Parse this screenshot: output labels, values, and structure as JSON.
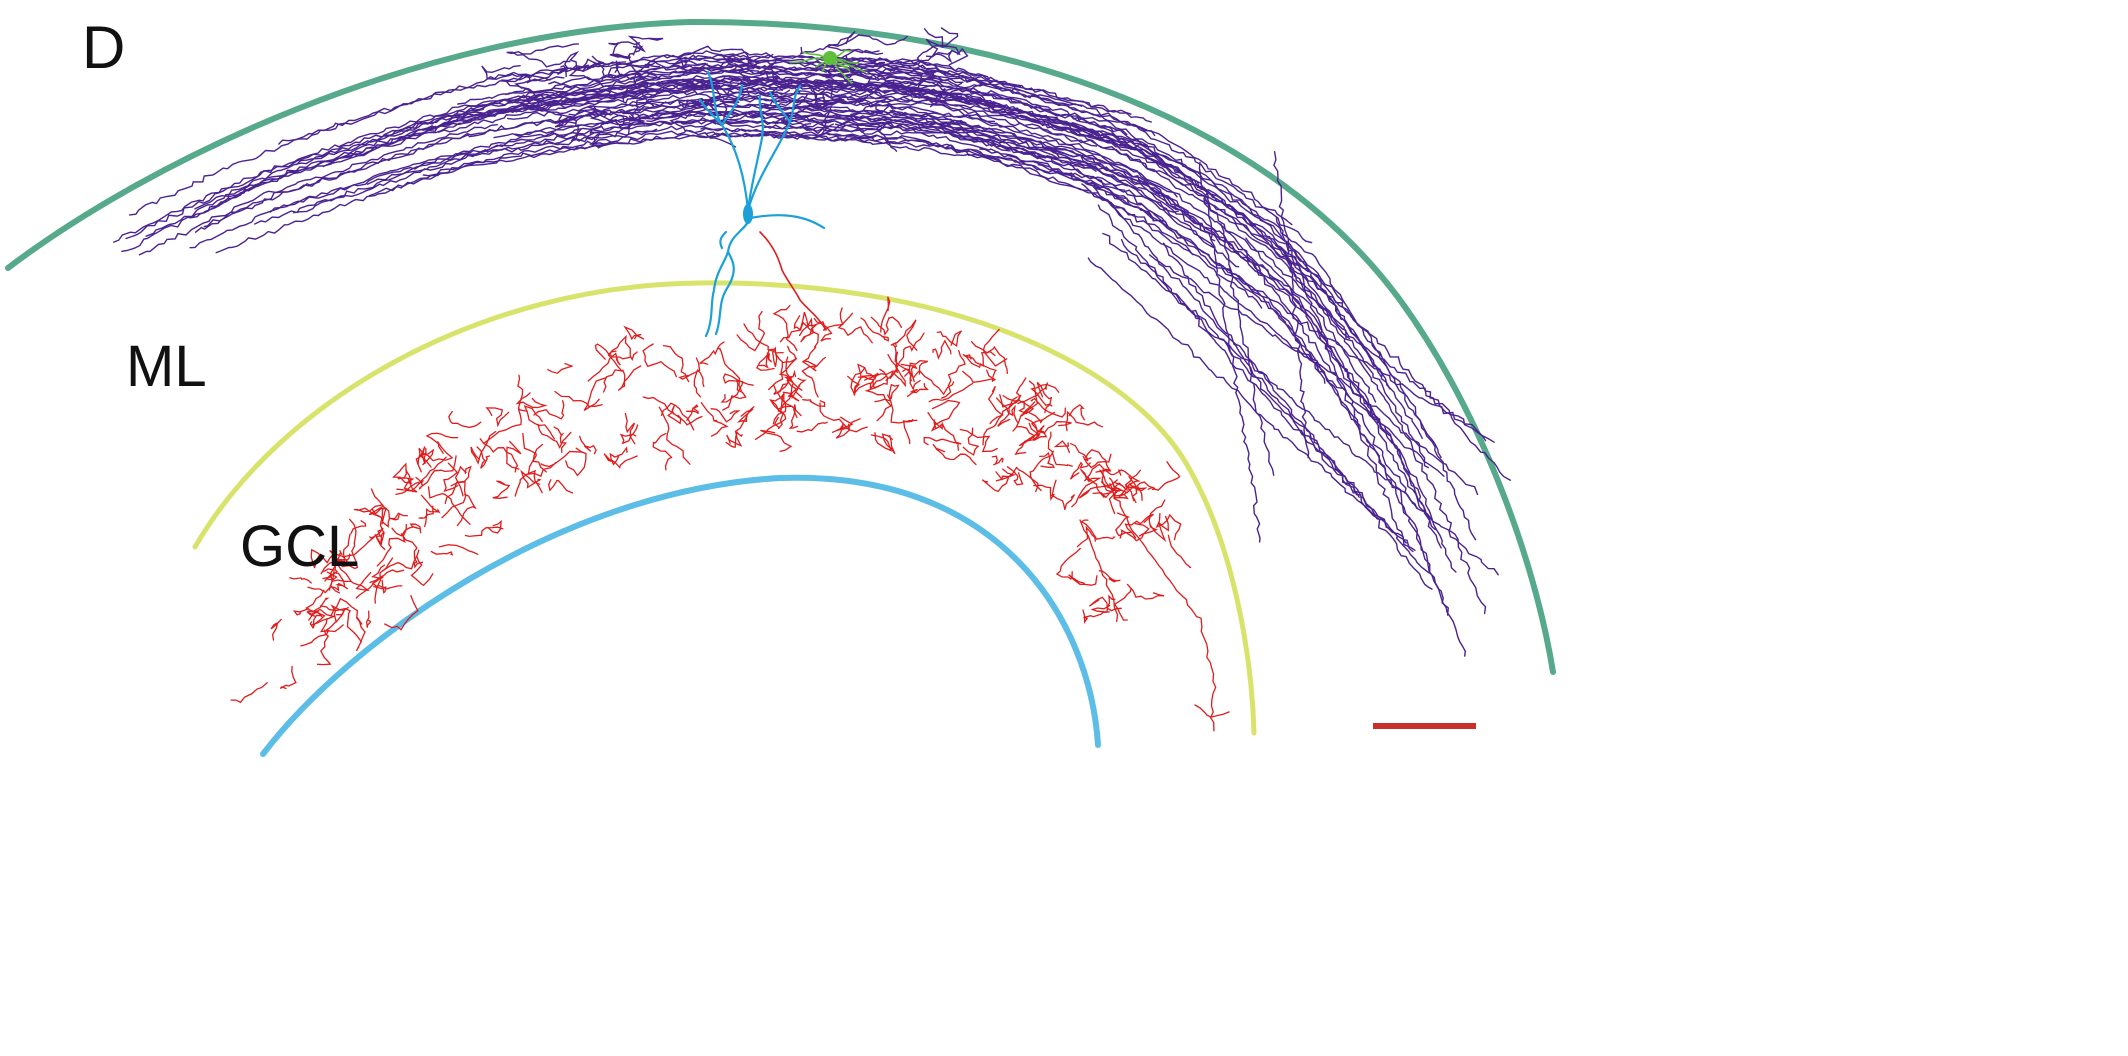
{
  "panel": {
    "letter": "D"
  },
  "labels": {
    "ml": "ML",
    "gcl": "GCL"
  },
  "colors": {
    "outer_boundary": "#56a98a",
    "ml_gcl_boundary": "#d8e36c",
    "inner_boundary": "#5cbde6",
    "purple_axons": "#4a2390",
    "granule_cell": "#1ba0d8",
    "red_axon": "#e01c1c",
    "green_cell": "#5fbf3a",
    "scale_bar": "#c8302c"
  },
  "icons": {
    "granule_cell_soma": "neuron-soma",
    "green_cell": "glial-cell"
  }
}
